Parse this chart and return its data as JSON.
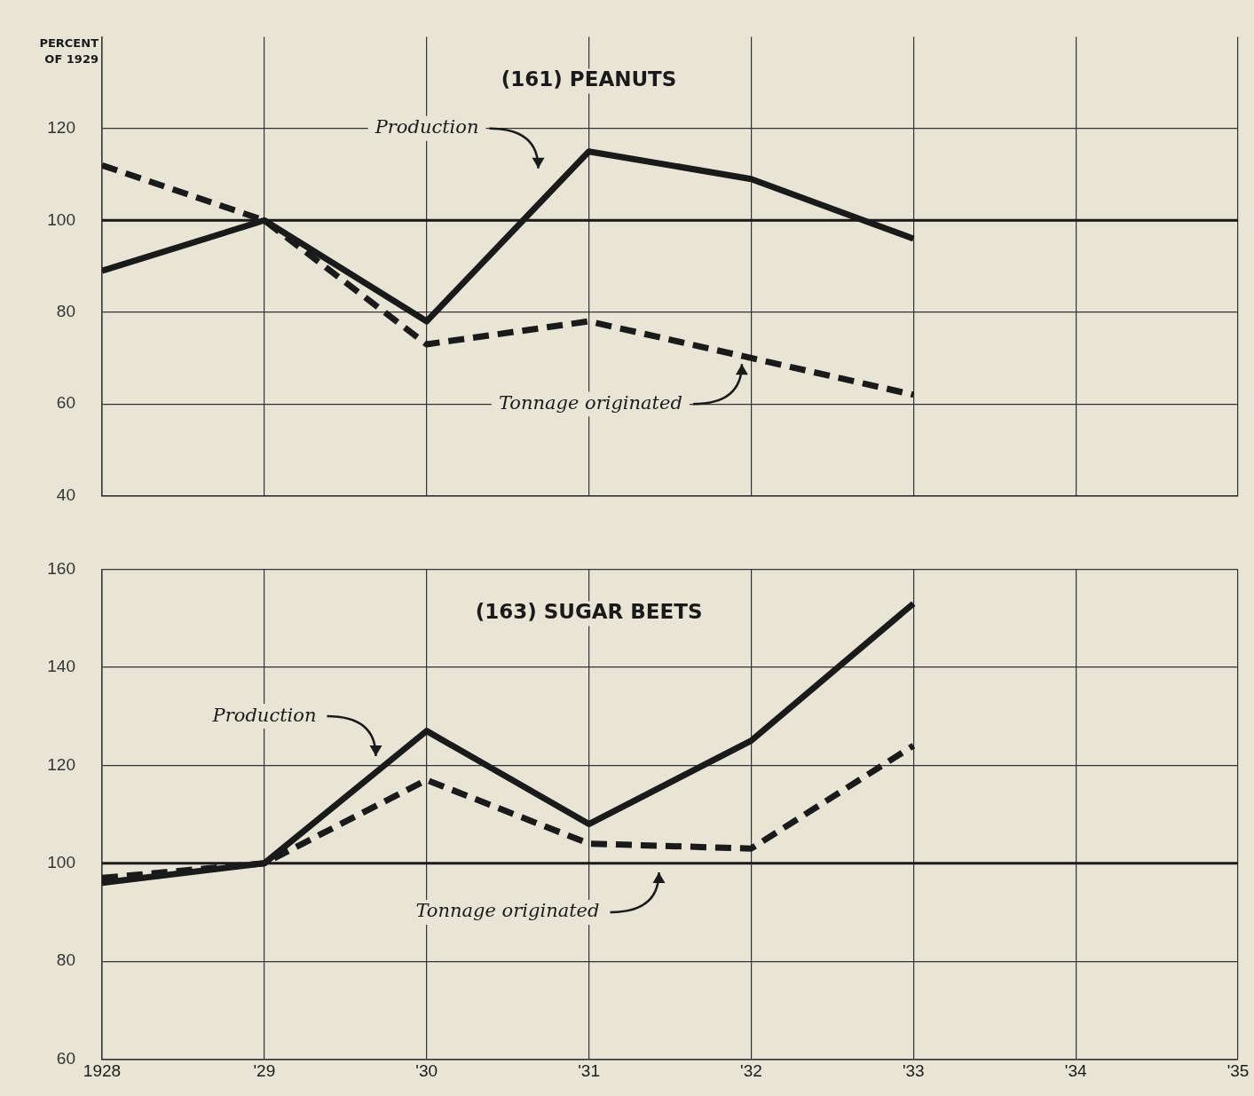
{
  "chart_data": [
    {
      "type": "line",
      "title": "(161) PEANUTS",
      "ylabel": "PERCENT OF 1929",
      "x": [
        1928,
        1929,
        1930,
        1931,
        1932,
        1933
      ],
      "series": [
        {
          "color": "#1a1a1a",
          "line_style": "solid",
          "values": [
            89,
            100,
            78,
            115,
            109,
            96
          ]
        },
        {
          "color": "#1a1a1a",
          "line_style": "dashed",
          "values": [
            112,
            100,
            73,
            78,
            70,
            62
          ]
        }
      ],
      "xlim": [
        1928,
        1935
      ],
      "xticks": [
        1928,
        1929,
        1930,
        1931,
        1932,
        1933,
        1934,
        1935
      ],
      "ylim": [
        40,
        140
      ],
      "yticks": [
        40,
        60,
        80,
        100,
        120
      ],
      "ref_lines": [
        {
          "axis": "y",
          "value": 100
        }
      ],
      "annotations": [
        "Production",
        "Tonnage originated"
      ],
      "grid": true,
      "legend": false,
      "marker": "none",
      "tick_labels": "y"
    },
    {
      "type": "line",
      "title": "(163) SUGAR BEETS",
      "x": [
        1928,
        1929,
        1930,
        1931,
        1932,
        1933
      ],
      "series": [
        {
          "color": "#1a1a1a",
          "line_style": "solid",
          "values": [
            96,
            100,
            127,
            108,
            125,
            153
          ]
        },
        {
          "color": "#1a1a1a",
          "line_style": "dashed",
          "values": [
            97,
            100,
            117,
            104,
            103,
            124
          ]
        }
      ],
      "xlim": [
        1928,
        1935
      ],
      "xticks": [
        {
          "value": 1928,
          "label": "1928"
        },
        {
          "value": 1929,
          "label": "'29"
        },
        {
          "value": 1930,
          "label": "'30"
        },
        {
          "value": 1931,
          "label": "'31"
        },
        {
          "value": 1932,
          "label": "'32"
        },
        {
          "value": 1933,
          "label": "'33"
        },
        {
          "value": 1934,
          "label": "'34"
        },
        {
          "value": 1935,
          "label": "'35"
        }
      ],
      "ylim": [
        60,
        160
      ],
      "yticks": [
        60,
        80,
        100,
        120,
        140,
        160
      ],
      "ref_lines": [
        {
          "axis": "y",
          "value": 100
        }
      ],
      "annotations": [
        "Production",
        "Tonnage originated"
      ],
      "grid": true,
      "legend": false,
      "marker": "none"
    }
  ]
}
